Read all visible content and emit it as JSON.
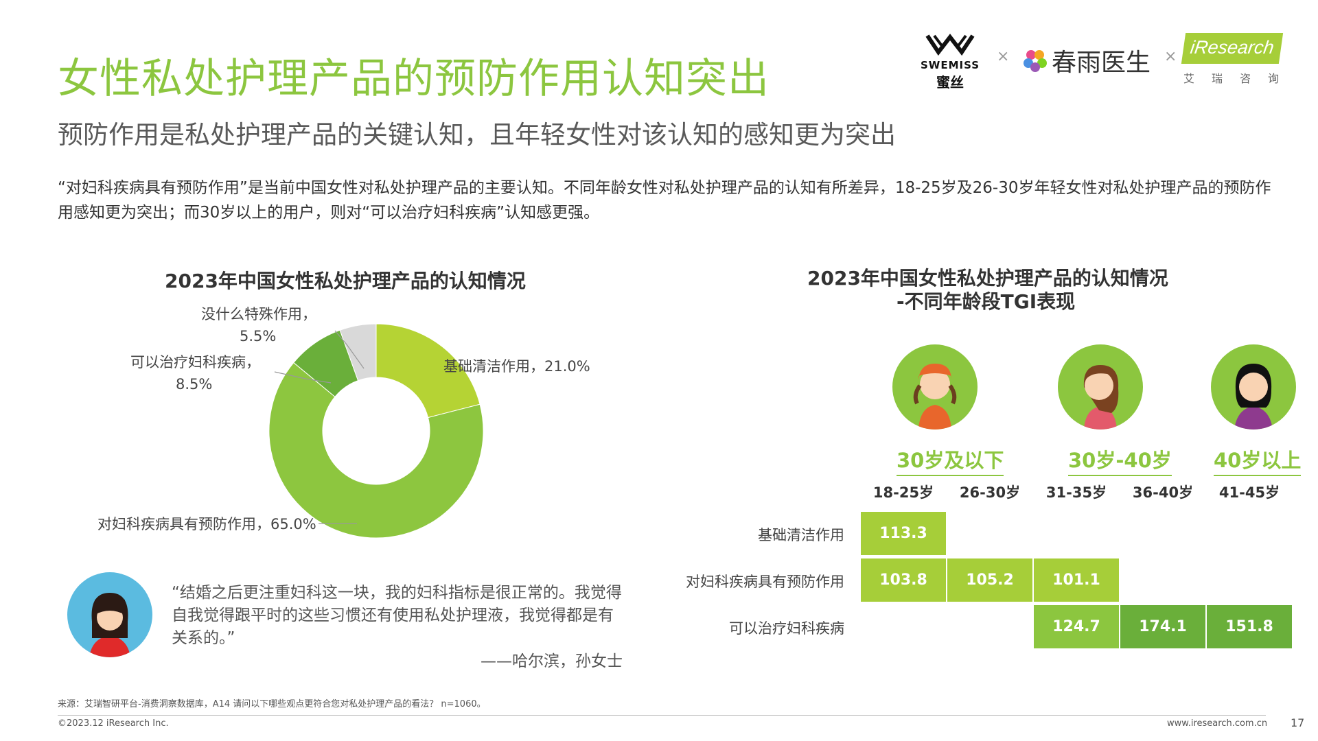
{
  "header": {
    "title": "女性私处护理产品的预防作用认知突出",
    "subtitle": "预防作用是私处护理产品的关键认知，且年轻女性对该认知的感知更为突出",
    "description": "“对妇科疾病具有预防作用”是当前中国女性对私处护理产品的主要认知。不同年龄女性对私处护理产品的认知有所差异，18-25岁及26-30岁年轻女性对私处护理产品的预防作用感知更为突出；而30岁以上的用户，则对“可以治疗妇科疾病”认知感更强。"
  },
  "logos": {
    "swemiss_en": "SWEMISS",
    "swemiss_cn": "蜜丝",
    "times1": "×",
    "chunyu": "春雨医生",
    "times2": "×",
    "iresearch": "iResearch",
    "iresearch_cn": "艾瑞咨询"
  },
  "chart_data": [
    {
      "type": "pie",
      "title": "2023年中国女性私处护理产品的认知情况",
      "slices": [
        {
          "label": "基础清洁作用",
          "value": 21.0,
          "color": "#b5d334"
        },
        {
          "label": "对妇科疾病具有预防作用",
          "value": 65.0,
          "color": "#8dc63f"
        },
        {
          "label": "可以治疗妇科疾病",
          "value": 8.5,
          "color": "#6aaf3a"
        },
        {
          "label": "没什么特殊作用",
          "value": 5.5,
          "color": "#d9d9d9"
        }
      ],
      "labels": {
        "s0": "基础清洁作用，21.0%",
        "s1": "对妇科疾病具有预防作用，65.0%",
        "s2a": "可以治疗妇科疾病，",
        "s2b": "8.5%",
        "s3a": "没什么特殊作用，",
        "s3b": "5.5%"
      }
    },
    {
      "type": "table",
      "title_line1": "2023年中国女性私处护理产品的认知情况",
      "title_line2": "-不同年龄段TGI表现",
      "age_groups": [
        "30岁及以下",
        "30岁-40岁",
        "40岁以上"
      ],
      "columns": [
        "18-25岁",
        "26-30岁",
        "31-35岁",
        "36-40岁",
        "41-45岁"
      ],
      "rows": [
        {
          "label": "基础清洁作用",
          "values": [
            113.3,
            null,
            null,
            null,
            null
          ]
        },
        {
          "label": "对妇科疾病具有预防作用",
          "values": [
            103.8,
            105.2,
            101.1,
            null,
            null
          ]
        },
        {
          "label": "可以治疗妇科疾病",
          "values": [
            null,
            null,
            124.7,
            174.1,
            151.8
          ]
        }
      ],
      "cell_colors": {
        "light": "#a6ce39",
        "mid": "#8cc63f",
        "dark": "#6aaf3a"
      }
    }
  ],
  "quote": {
    "text": "“结婚之后更注重妇科这一块，我的妇科指标是很正常的。我觉得自我觉得跟平时的这些习惯还有使用私处护理液，我觉得都是有关系的。”",
    "author": "——哈尔滨，孙女士"
  },
  "footer": {
    "source": "来源：艾瑞智研平台-消费洞察数据库，A14 请问以下哪些观点更符合您对私处护理产品的看法？ n=1060。",
    "copyright": "©2023.12 iResearch Inc.",
    "site": "www.iresearch.com.cn",
    "page": "17"
  }
}
